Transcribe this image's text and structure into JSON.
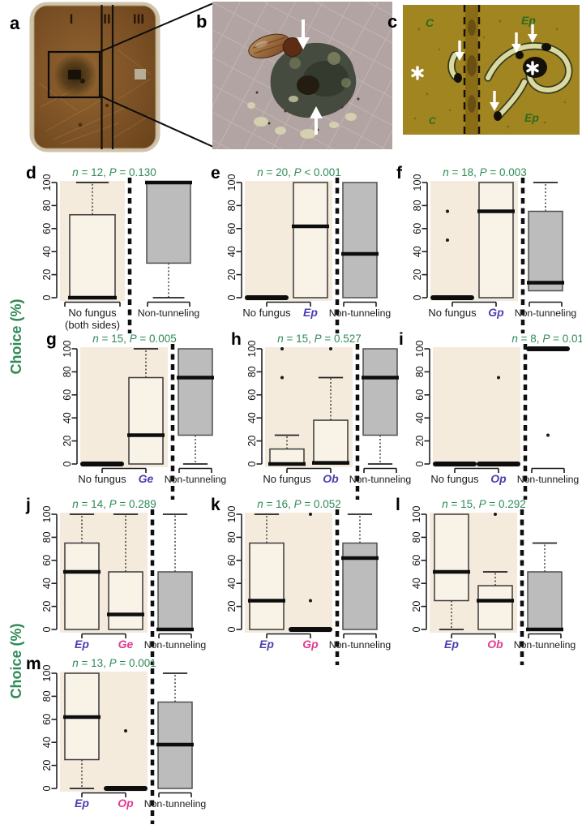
{
  "palette": {
    "green": "#2e8b57",
    "blue": "#4a3faf",
    "magenta": "#e13a93",
    "beige_bg": "#f4ebdd",
    "cream_box": "#f9f3e7",
    "gray_box": "#bcbcbc",
    "box_stroke": "#3a3a3a",
    "gray_stroke": "#4f4f4f",
    "median": "#0d0d0d",
    "annotation_green": "#2e6b1f"
  },
  "stats_symbols": {
    "n": "n",
    "p": "P"
  },
  "photos": {
    "a": {
      "label": "a",
      "sections": [
        "I",
        "II",
        "III"
      ]
    },
    "b": {
      "label": "b"
    },
    "c": {
      "label": "c",
      "notes": {
        "top_left": "C",
        "top_right": "Ep",
        "bottom_right": "Ep",
        "bottom_left": "C"
      }
    }
  },
  "axis": {
    "ylabel": "Choice (%)",
    "yticks": [
      "0",
      "20",
      "40",
      "60",
      "80",
      "100"
    ],
    "ylim": [
      0,
      100
    ]
  },
  "chart_data": [
    {
      "id": "d",
      "letter": "d",
      "type": "boxplot",
      "n": "12",
      "p_op": "=",
      "p": "0.130",
      "groups": [
        {
          "label": "No fungus",
          "label2": "(both sides)",
          "fill": "cream",
          "q1": 0,
          "median": 0,
          "q3": 72,
          "hi": 100,
          "outliers": []
        },
        {
          "label": "Non-tunneling",
          "fill": "gray",
          "q1": 30,
          "median": 100,
          "q3": 100,
          "lo": 0,
          "outliers": []
        }
      ]
    },
    {
      "id": "e",
      "letter": "e",
      "type": "boxplot",
      "n": "20",
      "p_op": "<",
      "p": "0.001",
      "groups": [
        {
          "label": "No fungus",
          "fill": "cream",
          "flat": 0,
          "outliers": []
        },
        {
          "label": "Ep",
          "label_color": "blue",
          "fill": "cream",
          "q1": 0,
          "median": 62,
          "q3": 100,
          "outliers": []
        },
        {
          "label": "Non-tunneling",
          "fill": "gray",
          "q1": 0,
          "median": 38,
          "q3": 100,
          "outliers": []
        }
      ]
    },
    {
      "id": "f",
      "letter": "f",
      "type": "boxplot",
      "n": "18",
      "p_op": "=",
      "p": "0.003",
      "groups": [
        {
          "label": "No fungus",
          "fill": "cream",
          "flat": 0,
          "outliers": [
            50,
            75
          ]
        },
        {
          "label": "Gp",
          "label_color": "blue",
          "fill": "cream",
          "q1": 0,
          "median": 75,
          "q3": 100,
          "outliers": []
        },
        {
          "label": "Non-tunneling",
          "fill": "gray",
          "q1": 6,
          "median": 13,
          "q3": 75,
          "hi": 100,
          "outliers": []
        }
      ]
    },
    {
      "id": "g",
      "letter": "g",
      "type": "boxplot",
      "n": "15",
      "p_op": "=",
      "p": "0.005",
      "groups": [
        {
          "label": "No fungus",
          "fill": "cream",
          "flat": 0,
          "outliers": []
        },
        {
          "label": "Ge",
          "label_color": "blue",
          "fill": "cream",
          "q1": 0,
          "median": 25,
          "q3": 75,
          "hi": 100,
          "outliers": []
        },
        {
          "label": "Non-tunneling",
          "fill": "gray",
          "q1": 25,
          "median": 75,
          "q3": 100,
          "lo": 0,
          "outliers": []
        }
      ]
    },
    {
      "id": "h",
      "letter": "h",
      "type": "boxplot",
      "n": "15",
      "p_op": "=",
      "p": "0.527",
      "groups": [
        {
          "label": "No fungus",
          "fill": "cream",
          "q1": 0,
          "median": 0,
          "q3": 13,
          "hi": 25,
          "outliers": [
            75,
            100
          ]
        },
        {
          "label": "Ob",
          "label_color": "blue",
          "fill": "cream",
          "q1": 0,
          "median": 1,
          "q3": 38,
          "hi": 75,
          "outliers": [
            100
          ]
        },
        {
          "label": "Non-tunneling",
          "fill": "gray",
          "q1": 25,
          "median": 75,
          "q3": 100,
          "lo": 0,
          "outliers": []
        }
      ]
    },
    {
      "id": "i",
      "letter": "i",
      "type": "boxplot",
      "n": "8",
      "p_op": "=",
      "p": "0.01",
      "groups": [
        {
          "label": "No fungus",
          "fill": "cream",
          "flat": 0,
          "outliers": []
        },
        {
          "label": "Op",
          "label_color": "blue",
          "fill": "cream",
          "flat": 0,
          "outliers": [
            75
          ]
        },
        {
          "label": "Non-tunneling",
          "fill": "gray",
          "flat": 100,
          "outliers": [
            25
          ]
        }
      ]
    },
    {
      "id": "j",
      "letter": "j",
      "type": "boxplot",
      "n": "14",
      "p_op": "=",
      "p": "0.289",
      "groups": [
        {
          "label": "Ep",
          "label_color": "blue",
          "fill": "cream",
          "q1": 0,
          "median": 50,
          "q3": 75,
          "hi": 100,
          "outliers": []
        },
        {
          "label": "Ge",
          "label_color": "magenta",
          "fill": "cream",
          "q1": 0,
          "median": 13,
          "q3": 50,
          "hi": 100,
          "outliers": []
        },
        {
          "label": "Non-tunneling",
          "fill": "gray",
          "q1": 0,
          "median": 0,
          "q3": 50,
          "hi": 100,
          "outliers": []
        }
      ]
    },
    {
      "id": "k",
      "letter": "k",
      "type": "boxplot",
      "n": "16",
      "p_op": "=",
      "p": "0.052",
      "groups": [
        {
          "label": "Ep",
          "label_color": "blue",
          "fill": "cream",
          "q1": 0,
          "median": 25,
          "q3": 75,
          "hi": 100,
          "outliers": []
        },
        {
          "label": "Gp",
          "label_color": "magenta",
          "fill": "cream",
          "flat": 0,
          "outliers": [
            25,
            100
          ]
        },
        {
          "label": "Non-tunneling",
          "fill": "gray",
          "q1": 0,
          "median": 62,
          "q3": 75,
          "hi": 100,
          "outliers": []
        }
      ]
    },
    {
      "id": "l",
      "letter": "l",
      "type": "boxplot",
      "n": "15",
      "p_op": "=",
      "p": "0.292",
      "groups": [
        {
          "label": "Ep",
          "label_color": "blue",
          "fill": "cream",
          "q1": 25,
          "median": 50,
          "q3": 100,
          "lo": 0,
          "outliers": []
        },
        {
          "label": "Ob",
          "label_color": "magenta",
          "fill": "cream",
          "q1": 0,
          "median": 25,
          "q3": 38,
          "hi": 50,
          "outliers": [
            100
          ]
        },
        {
          "label": "Non-tunneling",
          "fill": "gray",
          "q1": 0,
          "median": 0,
          "q3": 50,
          "hi": 75,
          "outliers": []
        }
      ]
    },
    {
      "id": "m",
      "letter": "m",
      "type": "boxplot",
      "n": "13",
      "p_op": "=",
      "p": "0.001",
      "groups": [
        {
          "label": "Ep",
          "label_color": "blue",
          "fill": "cream",
          "q1": 25,
          "median": 62,
          "q3": 100,
          "lo": 0,
          "outliers": []
        },
        {
          "label": "Op",
          "label_color": "magenta",
          "fill": "cream",
          "flat": 0,
          "outliers": [
            50
          ]
        },
        {
          "label": "Non-tunneling",
          "fill": "gray",
          "q1": 0,
          "median": 38,
          "q3": 75,
          "hi": 100,
          "outliers": []
        }
      ]
    }
  ]
}
